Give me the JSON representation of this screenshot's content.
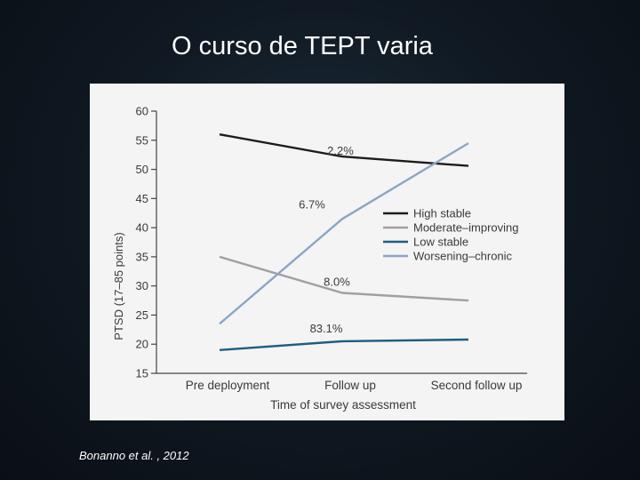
{
  "slide": {
    "title": "O curso de TEPT varia",
    "citation": "Bonanno et al. , 2012"
  },
  "chart_data": {
    "type": "line",
    "categories": [
      "Pre deployment",
      "Follow up",
      "Second follow up"
    ],
    "ylabel": "PTSD (17–85 points)",
    "xlabel": "Time of survey assessment",
    "ylim": [
      15,
      60
    ],
    "yticks": [
      15,
      20,
      25,
      30,
      35,
      40,
      45,
      50,
      55,
      60
    ],
    "grid": false,
    "legend_position": "right",
    "series": [
      {
        "name": "High  stable",
        "values": [
          56,
          52.2,
          50.6
        ],
        "color": "#1c1c1c",
        "annotation": "2.2%"
      },
      {
        "name": "Moderate–improving",
        "values": [
          35,
          28.8,
          27.5
        ],
        "color": "#a0a0a0",
        "annotation": "8.0%"
      },
      {
        "name": "Low  stable",
        "values": [
          19,
          20.5,
          20.8
        ],
        "color": "#1d5e80",
        "annotation": "83.1%"
      },
      {
        "name": "Worsening–chronic",
        "values": [
          23.5,
          41.5,
          54.5
        ],
        "color": "#8aa6c4",
        "annotation": "6.7%"
      }
    ]
  }
}
